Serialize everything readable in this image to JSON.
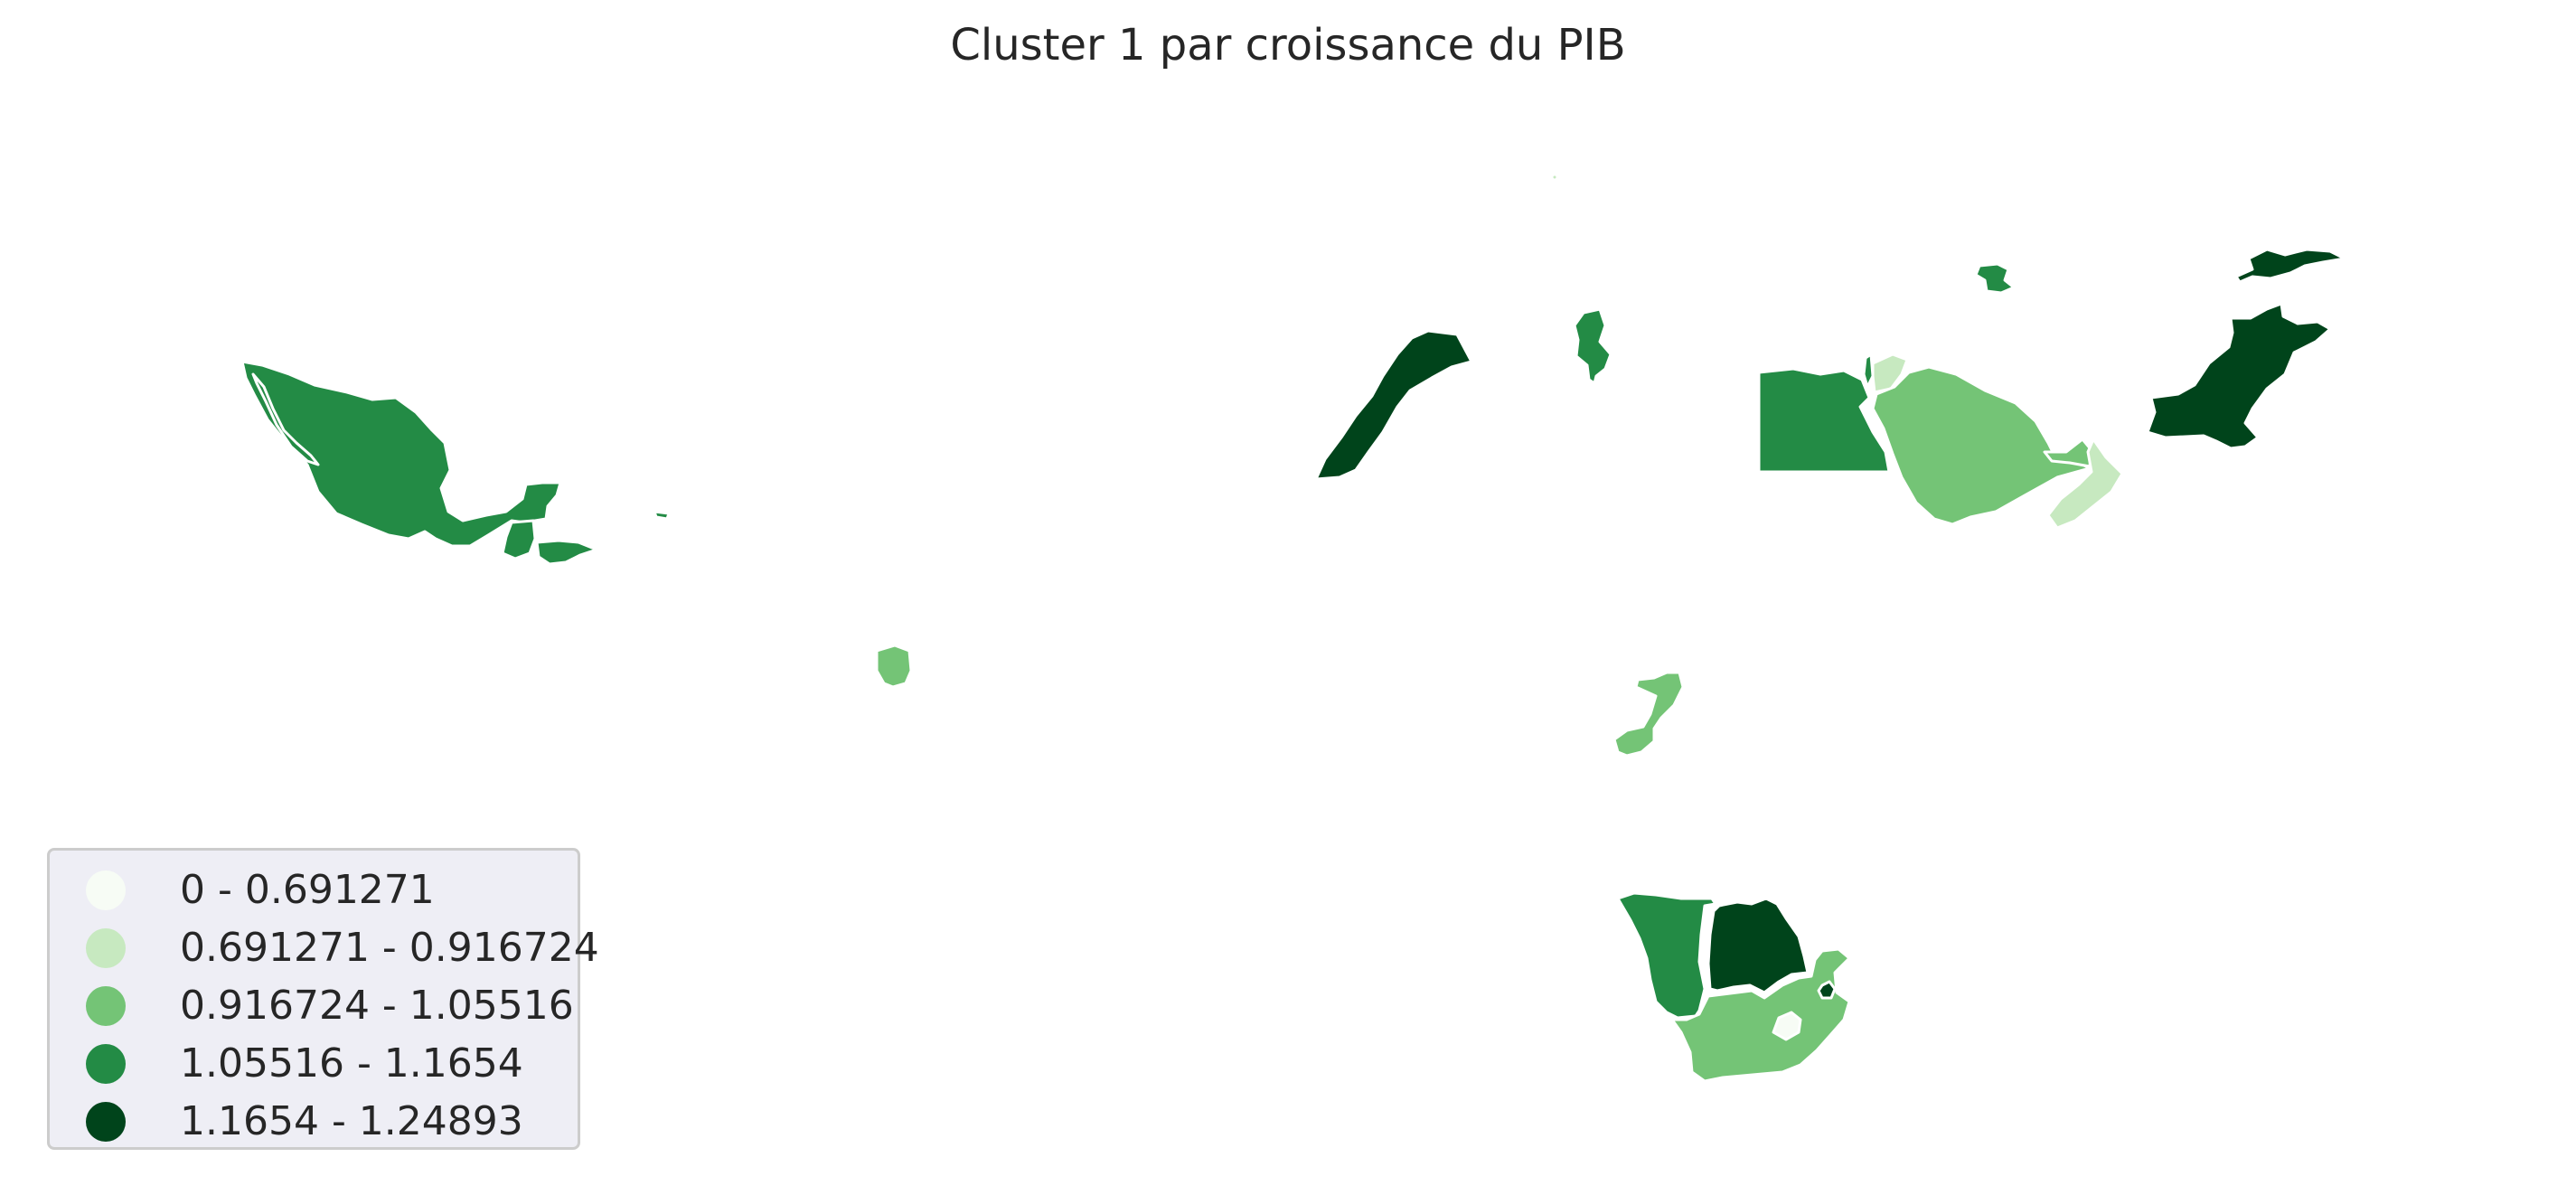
{
  "title": "Cluster 1 par croissance du PIB",
  "legend": {
    "items": [
      {
        "label": "0 - 0.691271",
        "color": "#f7fcf5"
      },
      {
        "label": "0.691271 - 0.916724",
        "color": "#c7e9c0"
      },
      {
        "label": "0.916724 - 1.05516",
        "color": "#74c476"
      },
      {
        "label": "1.05516 - 1.1654",
        "color": "#238b45"
      },
      {
        "label": "1.1654 - 1.24893",
        "color": "#00441b"
      }
    ]
  },
  "regions": [
    {
      "id": "mexico",
      "class": 3
    },
    {
      "id": "guatemala",
      "class": 3
    },
    {
      "id": "honduras",
      "class": 3
    },
    {
      "id": "caribbean-islet",
      "class": 3
    },
    {
      "id": "suriname",
      "class": 2
    },
    {
      "id": "morocco",
      "class": 4
    },
    {
      "id": "tunisia",
      "class": 3
    },
    {
      "id": "egypt",
      "class": 3
    },
    {
      "id": "israel",
      "class": 3
    },
    {
      "id": "jordan",
      "class": 1
    },
    {
      "id": "saudi-arabia",
      "class": 2
    },
    {
      "id": "uae",
      "class": 2
    },
    {
      "id": "oman",
      "class": 1
    },
    {
      "id": "azerbaijan",
      "class": 3
    },
    {
      "id": "kyrgyzstan",
      "class": 4
    },
    {
      "id": "pakistan",
      "class": 4
    },
    {
      "id": "malawi-mozambique",
      "class": 2
    },
    {
      "id": "namibia",
      "class": 3
    },
    {
      "id": "botswana",
      "class": 4
    },
    {
      "id": "south-africa",
      "class": 2
    },
    {
      "id": "lesotho",
      "class": 0
    },
    {
      "id": "eswatini",
      "class": 4
    }
  ]
}
